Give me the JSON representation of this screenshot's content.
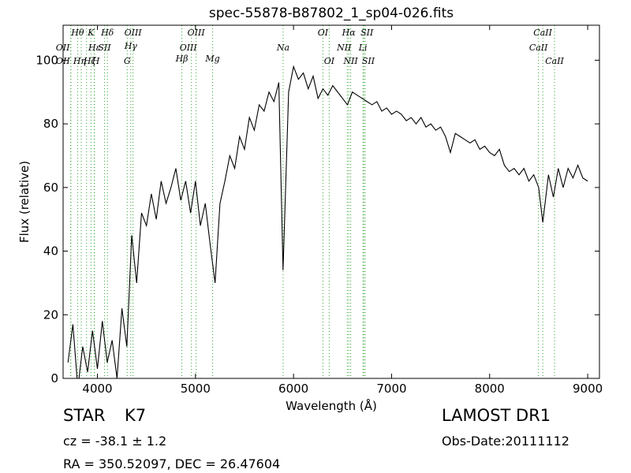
{
  "chart_data": {
    "type": "line",
    "title": "spec-55878-B87802_1_sp04-026.fits",
    "x_label": "Wavelength (Å)",
    "y_label": "Flux (relative)",
    "color": "#000000",
    "line_color": "#2ca02c",
    "xlim": [
      3650,
      9120
    ],
    "ylim": [
      0,
      111
    ],
    "xticks": [
      4000,
      5000,
      6000,
      7000,
      8000,
      9000
    ],
    "yticks": [
      0,
      20,
      40,
      60,
      80,
      100
    ],
    "x": [
      3700,
      3750,
      3800,
      3850,
      3900,
      3950,
      4000,
      4050,
      4100,
      4150,
      4200,
      4250,
      4300,
      4350,
      4400,
      4450,
      4500,
      4550,
      4600,
      4650,
      4700,
      4750,
      4800,
      4850,
      4900,
      4950,
      5000,
      5050,
      5100,
      5150,
      5200,
      5250,
      5300,
      5350,
      5400,
      5450,
      5500,
      5550,
      5600,
      5650,
      5700,
      5750,
      5800,
      5850,
      5893,
      5950,
      6000,
      6050,
      6100,
      6150,
      6200,
      6250,
      6300,
      6350,
      6400,
      6450,
      6500,
      6550,
      6600,
      6650,
      6700,
      6750,
      6800,
      6850,
      6900,
      6950,
      7000,
      7050,
      7100,
      7150,
      7200,
      7250,
      7300,
      7350,
      7400,
      7450,
      7500,
      7550,
      7600,
      7650,
      7700,
      7750,
      7800,
      7850,
      7900,
      7950,
      8000,
      8050,
      8100,
      8150,
      8200,
      8250,
      8300,
      8350,
      8400,
      8450,
      8500,
      8542,
      8600,
      8650,
      8700,
      8750,
      8800,
      8850,
      8900,
      8950,
      9000
    ],
    "values": [
      5,
      17,
      -3,
      10,
      2,
      15,
      3,
      18,
      5,
      12,
      0,
      22,
      10,
      45,
      30,
      52,
      48,
      58,
      50,
      62,
      55,
      60,
      66,
      56,
      62,
      52,
      62,
      48,
      55,
      42,
      30,
      55,
      62,
      70,
      66,
      76,
      72,
      82,
      78,
      86,
      84,
      90,
      87,
      93,
      34,
      90,
      98,
      94,
      96,
      91,
      95,
      88,
      91,
      89,
      92,
      90,
      88,
      86,
      90,
      89,
      88,
      87,
      86,
      87,
      84,
      85,
      83,
      84,
      83,
      81,
      82,
      80,
      82,
      79,
      80,
      78,
      79,
      76,
      71,
      77,
      76,
      75,
      74,
      75,
      72,
      73,
      71,
      70,
      72,
      67,
      65,
      66,
      64,
      66,
      62,
      64,
      60,
      49,
      64,
      57,
      66,
      60,
      66,
      63,
      67,
      63,
      62
    ],
    "lines": [
      {
        "name": "OII",
        "wavelength": 3727
      },
      {
        "name": "OII",
        "wavelength": 3729
      },
      {
        "name": "Hθ",
        "wavelength": 3798
      },
      {
        "name": "Hη",
        "wavelength": 3835
      },
      {
        "name": "Hζ",
        "wavelength": 3889
      },
      {
        "name": "Hε",
        "wavelength": 3970
      },
      {
        "name": "K",
        "wavelength": 3934
      },
      {
        "name": "H",
        "wavelength": 3968
      },
      {
        "name": "SII",
        "wavelength": 4072
      },
      {
        "name": "Hδ",
        "wavelength": 4102
      },
      {
        "name": "G",
        "wavelength": 4304
      },
      {
        "name": "Hγ",
        "wavelength": 4340
      },
      {
        "name": "OIII",
        "wavelength": 4363
      },
      {
        "name": "Hβ",
        "wavelength": 4861
      },
      {
        "name": "OIII",
        "wavelength": 4959
      },
      {
        "name": "OIII",
        "wavelength": 5007
      },
      {
        "name": "Mg",
        "wavelength": 5175
      },
      {
        "name": "Na",
        "wavelength": 5894
      },
      {
        "name": "OI",
        "wavelength": 6300
      },
      {
        "name": "OI",
        "wavelength": 6364
      },
      {
        "name": "NII",
        "wavelength": 6548
      },
      {
        "name": "Hα",
        "wavelength": 6563
      },
      {
        "name": "NII",
        "wavelength": 6583
      },
      {
        "name": "Li",
        "wavelength": 6708
      },
      {
        "name": "SII",
        "wavelength": 6717
      },
      {
        "name": "SII",
        "wavelength": 6731
      },
      {
        "name": "CaII",
        "wavelength": 8498
      },
      {
        "name": "CaII",
        "wavelength": 8542
      },
      {
        "name": "CaII",
        "wavelength": 8662
      }
    ],
    "object_class": "STAR",
    "subclass": "K7",
    "redshift": "cz = -38.1 ± 1.2",
    "coordinates": "RA = 350.52097, DEC = 26.47604",
    "release": "LAMOST DR1",
    "obs_date": "Obs-Date:20111112"
  }
}
